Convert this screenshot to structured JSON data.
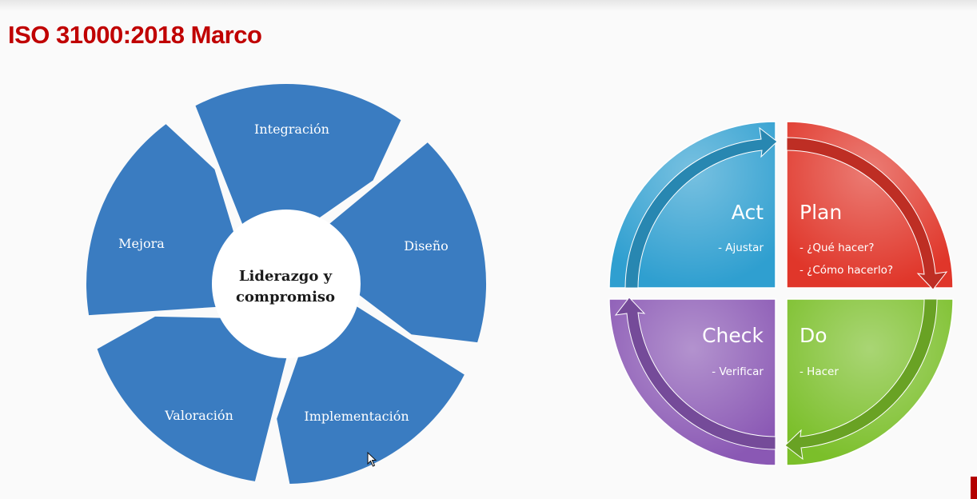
{
  "title": "ISO 31000:2018 Marco",
  "framework": {
    "center": [
      "Liderazgo y",
      "compromiso"
    ],
    "segments": [
      "Integración",
      "Diseño",
      "Implementación",
      "Valoración",
      "Mejora"
    ],
    "color": "#3a7cc1"
  },
  "pdca": [
    {
      "head": "Plan",
      "items": [
        "- ¿Qué hacer?",
        "- ¿Cómo hacerlo?"
      ],
      "color": "#e0362a"
    },
    {
      "head": "Do",
      "items": [
        "- Hacer"
      ],
      "color": "#7bbf2a"
    },
    {
      "head": "Check",
      "items": [
        "- Verificar"
      ],
      "color": "#8a58b4"
    },
    {
      "head": "Act",
      "items": [
        "- Ajustar"
      ],
      "color": "#2f9fd0"
    }
  ]
}
